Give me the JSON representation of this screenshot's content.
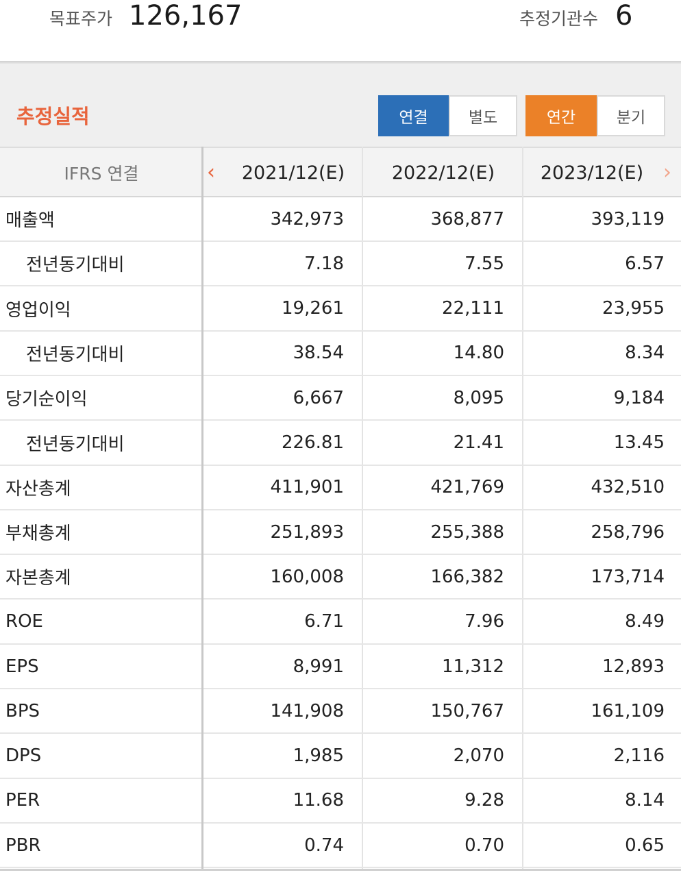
{
  "summary": {
    "target_price_label": "목표주가",
    "target_price_value": "126,167",
    "analyst_count_label": "추정기관수",
    "analyst_count_value": "6"
  },
  "section": {
    "title": "추정실적",
    "scope_toggle": {
      "options": [
        "연결",
        "별도"
      ],
      "selected": "연결"
    },
    "period_toggle": {
      "options": [
        "연간",
        "분기"
      ],
      "selected": "연간"
    }
  },
  "colors": {
    "title_accent": "#e8643c",
    "scope_active": "#2c6fb7",
    "period_active": "#eb8128"
  },
  "table": {
    "header_label": "IFRS 연결",
    "columns": [
      "2021/12(E)",
      "2022/12(E)",
      "2023/12(E)"
    ],
    "prev_icon": "chevron-left-icon",
    "next_icon": "chevron-right-icon",
    "rows": [
      {
        "label": "매출액",
        "indent": false,
        "values": [
          "342,973",
          "368,877",
          "393,119"
        ]
      },
      {
        "label": "전년동기대비",
        "indent": true,
        "values": [
          "7.18",
          "7.55",
          "6.57"
        ]
      },
      {
        "label": "영업이익",
        "indent": false,
        "values": [
          "19,261",
          "22,111",
          "23,955"
        ]
      },
      {
        "label": "전년동기대비",
        "indent": true,
        "values": [
          "38.54",
          "14.80",
          "8.34"
        ]
      },
      {
        "label": "당기순이익",
        "indent": false,
        "values": [
          "6,667",
          "8,095",
          "9,184"
        ]
      },
      {
        "label": "전년동기대비",
        "indent": true,
        "values": [
          "226.81",
          "21.41",
          "13.45"
        ]
      },
      {
        "label": "자산총계",
        "indent": false,
        "values": [
          "411,901",
          "421,769",
          "432,510"
        ]
      },
      {
        "label": "부채총계",
        "indent": false,
        "values": [
          "251,893",
          "255,388",
          "258,796"
        ]
      },
      {
        "label": "자본총계",
        "indent": false,
        "values": [
          "160,008",
          "166,382",
          "173,714"
        ]
      },
      {
        "label": "ROE",
        "indent": false,
        "values": [
          "6.71",
          "7.96",
          "8.49"
        ]
      },
      {
        "label": "EPS",
        "indent": false,
        "values": [
          "8,991",
          "11,312",
          "12,893"
        ]
      },
      {
        "label": "BPS",
        "indent": false,
        "values": [
          "141,908",
          "150,767",
          "161,109"
        ]
      },
      {
        "label": "DPS",
        "indent": false,
        "values": [
          "1,985",
          "2,070",
          "2,116"
        ]
      },
      {
        "label": "PER",
        "indent": false,
        "values": [
          "11.68",
          "9.28",
          "8.14"
        ]
      },
      {
        "label": "PBR",
        "indent": false,
        "values": [
          "0.74",
          "0.70",
          "0.65"
        ]
      }
    ]
  }
}
